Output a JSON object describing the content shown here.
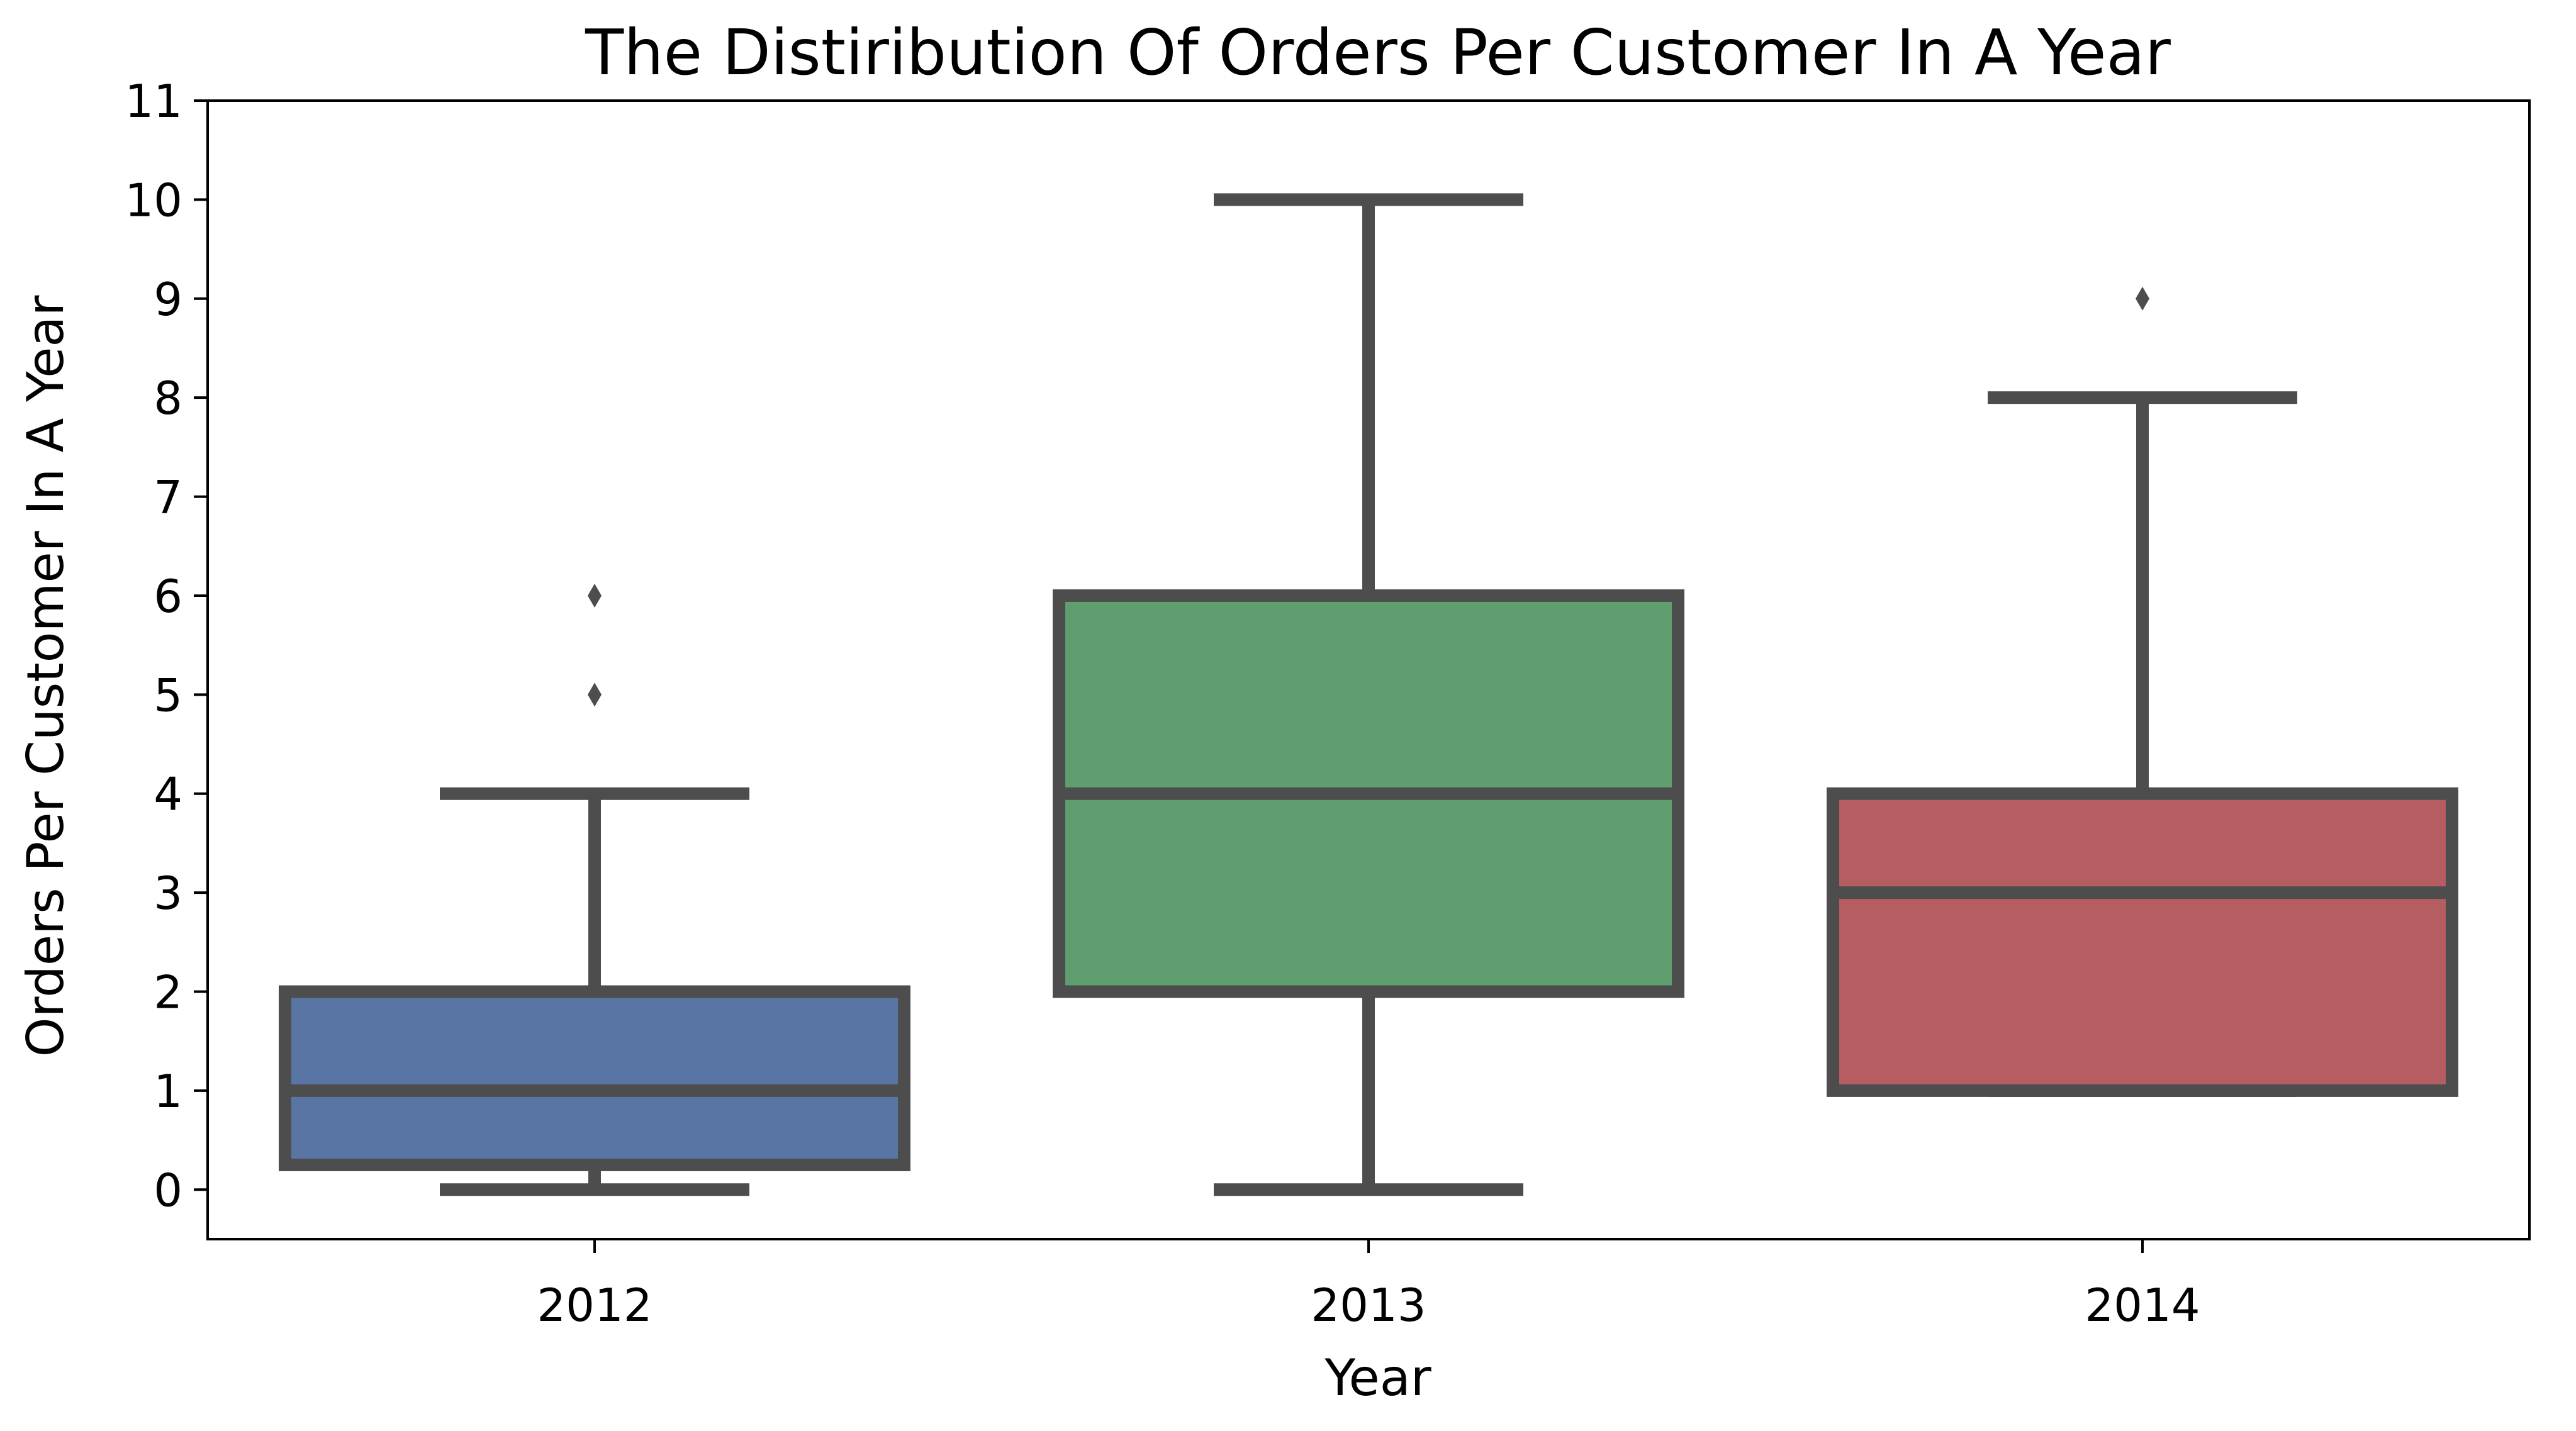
{
  "chart_data": {
    "type": "box",
    "title": "The Distiribution Of Orders Per Customer In A Year",
    "xlabel": "Year",
    "ylabel": "Orders Per Customer In A Year",
    "ylim": [
      -0.5,
      11
    ],
    "yticks": [
      0,
      1,
      2,
      3,
      4,
      5,
      6,
      7,
      8,
      9,
      10,
      11
    ],
    "grid": false,
    "categories": [
      "2012",
      "2013",
      "2014"
    ],
    "boxes": [
      {
        "category": "2012",
        "whisker_low": 0,
        "q1": 0.25,
        "median": 1,
        "q3": 2,
        "whisker_high": 4,
        "outliers": [
          5,
          6
        ],
        "color": "#5875a4"
      },
      {
        "category": "2013",
        "whisker_low": 0,
        "q1": 2,
        "median": 4,
        "q3": 6,
        "whisker_high": 10,
        "outliers": [],
        "color": "#5f9e6e"
      },
      {
        "category": "2014",
        "whisker_low": 1,
        "q1": 1,
        "median": 3,
        "q3": 4,
        "whisker_high": 8,
        "outliers": [
          9
        ],
        "color": "#b55d60"
      }
    ]
  }
}
